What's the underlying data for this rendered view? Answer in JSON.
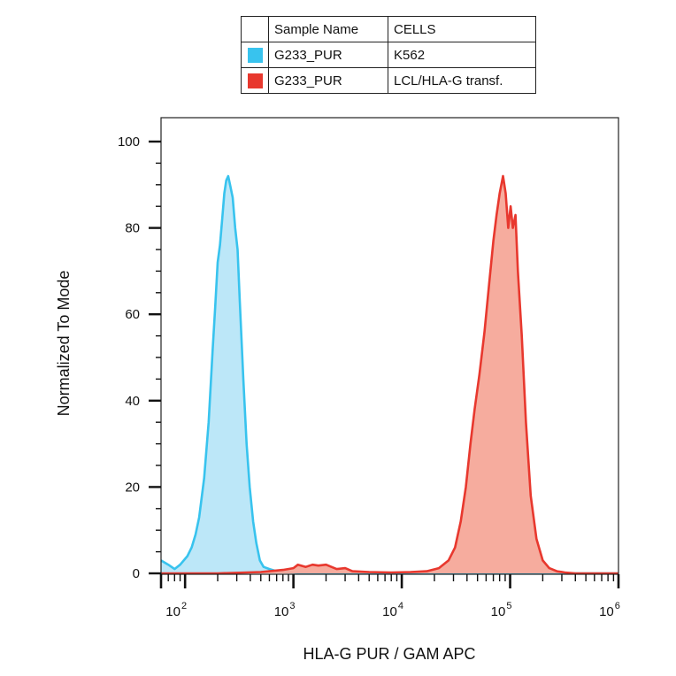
{
  "legend": {
    "header": {
      "col1": "Sample Name",
      "col2": "CELLS"
    },
    "rows": [
      {
        "name": "G233_PUR",
        "cells": "K562",
        "color": "#38c3ee"
      },
      {
        "name": "G233_PUR",
        "cells": "LCL/HLA-G transf.",
        "color": "#e8382e"
      }
    ]
  },
  "chart_data": {
    "type": "area",
    "title": "",
    "xlabel": "HLA-G PUR / GAM APC",
    "ylabel": "Normalized To Mode",
    "x_scale": "log",
    "xlim": [
      60,
      1000000
    ],
    "ylim": [
      0,
      100
    ],
    "y_ticks": [
      0,
      20,
      40,
      60,
      80,
      100
    ],
    "x_ticks": [
      {
        "base": "10",
        "exp": "2",
        "value": 100
      },
      {
        "base": "10",
        "exp": "3",
        "value": 1000
      },
      {
        "base": "10",
        "exp": "4",
        "value": 10000
      },
      {
        "base": "10",
        "exp": "5",
        "value": 100000
      },
      {
        "base": "10",
        "exp": "6",
        "value": 1000000
      }
    ],
    "grid": false,
    "legend_position": "top-center",
    "series": [
      {
        "name": "K562",
        "color": "#38c3ee",
        "fill": "#b8e6f8",
        "points": [
          [
            60,
            3
          ],
          [
            70,
            2
          ],
          [
            80,
            1
          ],
          [
            90,
            2
          ],
          [
            105,
            4
          ],
          [
            115,
            6
          ],
          [
            125,
            9
          ],
          [
            135,
            13
          ],
          [
            150,
            22
          ],
          [
            165,
            35
          ],
          [
            180,
            52
          ],
          [
            190,
            62
          ],
          [
            200,
            72
          ],
          [
            210,
            76
          ],
          [
            220,
            82
          ],
          [
            230,
            88
          ],
          [
            240,
            91
          ],
          [
            250,
            92
          ],
          [
            260,
            90
          ],
          [
            275,
            87
          ],
          [
            290,
            80
          ],
          [
            305,
            75
          ],
          [
            320,
            63
          ],
          [
            345,
            45
          ],
          [
            370,
            30
          ],
          [
            395,
            20
          ],
          [
            425,
            12
          ],
          [
            455,
            7
          ],
          [
            490,
            3
          ],
          [
            530,
            1.5
          ],
          [
            600,
            1
          ],
          [
            700,
            0.5
          ],
          [
            850,
            0.3
          ],
          [
            1000,
            0.2
          ],
          [
            1200,
            0.1
          ],
          [
            1500,
            0
          ],
          [
            1000000,
            0
          ]
        ]
      },
      {
        "name": "LCL/HLA-G transf.",
        "color": "#e8382e",
        "fill": "#f6a899",
        "points": [
          [
            60,
            0
          ],
          [
            200,
            0
          ],
          [
            500,
            0.3
          ],
          [
            800,
            0.8
          ],
          [
            1000,
            1.2
          ],
          [
            1100,
            2
          ],
          [
            1300,
            1.5
          ],
          [
            1500,
            2
          ],
          [
            1700,
            1.8
          ],
          [
            2000,
            2
          ],
          [
            2500,
            1
          ],
          [
            3000,
            1.2
          ],
          [
            3500,
            0.5
          ],
          [
            5000,
            0.3
          ],
          [
            8000,
            0.2
          ],
          [
            12000,
            0.3
          ],
          [
            17000,
            0.5
          ],
          [
            22000,
            1.2
          ],
          [
            27000,
            3
          ],
          [
            31000,
            6
          ],
          [
            35000,
            12
          ],
          [
            39000,
            20
          ],
          [
            43000,
            30
          ],
          [
            47000,
            38
          ],
          [
            52000,
            46
          ],
          [
            58000,
            56
          ],
          [
            64000,
            67
          ],
          [
            70000,
            77
          ],
          [
            75000,
            83
          ],
          [
            80000,
            88
          ],
          [
            86000,
            92
          ],
          [
            91000,
            88
          ],
          [
            96000,
            80
          ],
          [
            101000,
            85
          ],
          [
            106000,
            80
          ],
          [
            112000,
            83
          ],
          [
            118000,
            70
          ],
          [
            128000,
            55
          ],
          [
            140000,
            35
          ],
          [
            155000,
            18
          ],
          [
            175000,
            8
          ],
          [
            200000,
            3
          ],
          [
            230000,
            1.2
          ],
          [
            270000,
            0.5
          ],
          [
            320000,
            0.2
          ],
          [
            400000,
            0
          ],
          [
            1000000,
            0
          ]
        ]
      }
    ]
  }
}
